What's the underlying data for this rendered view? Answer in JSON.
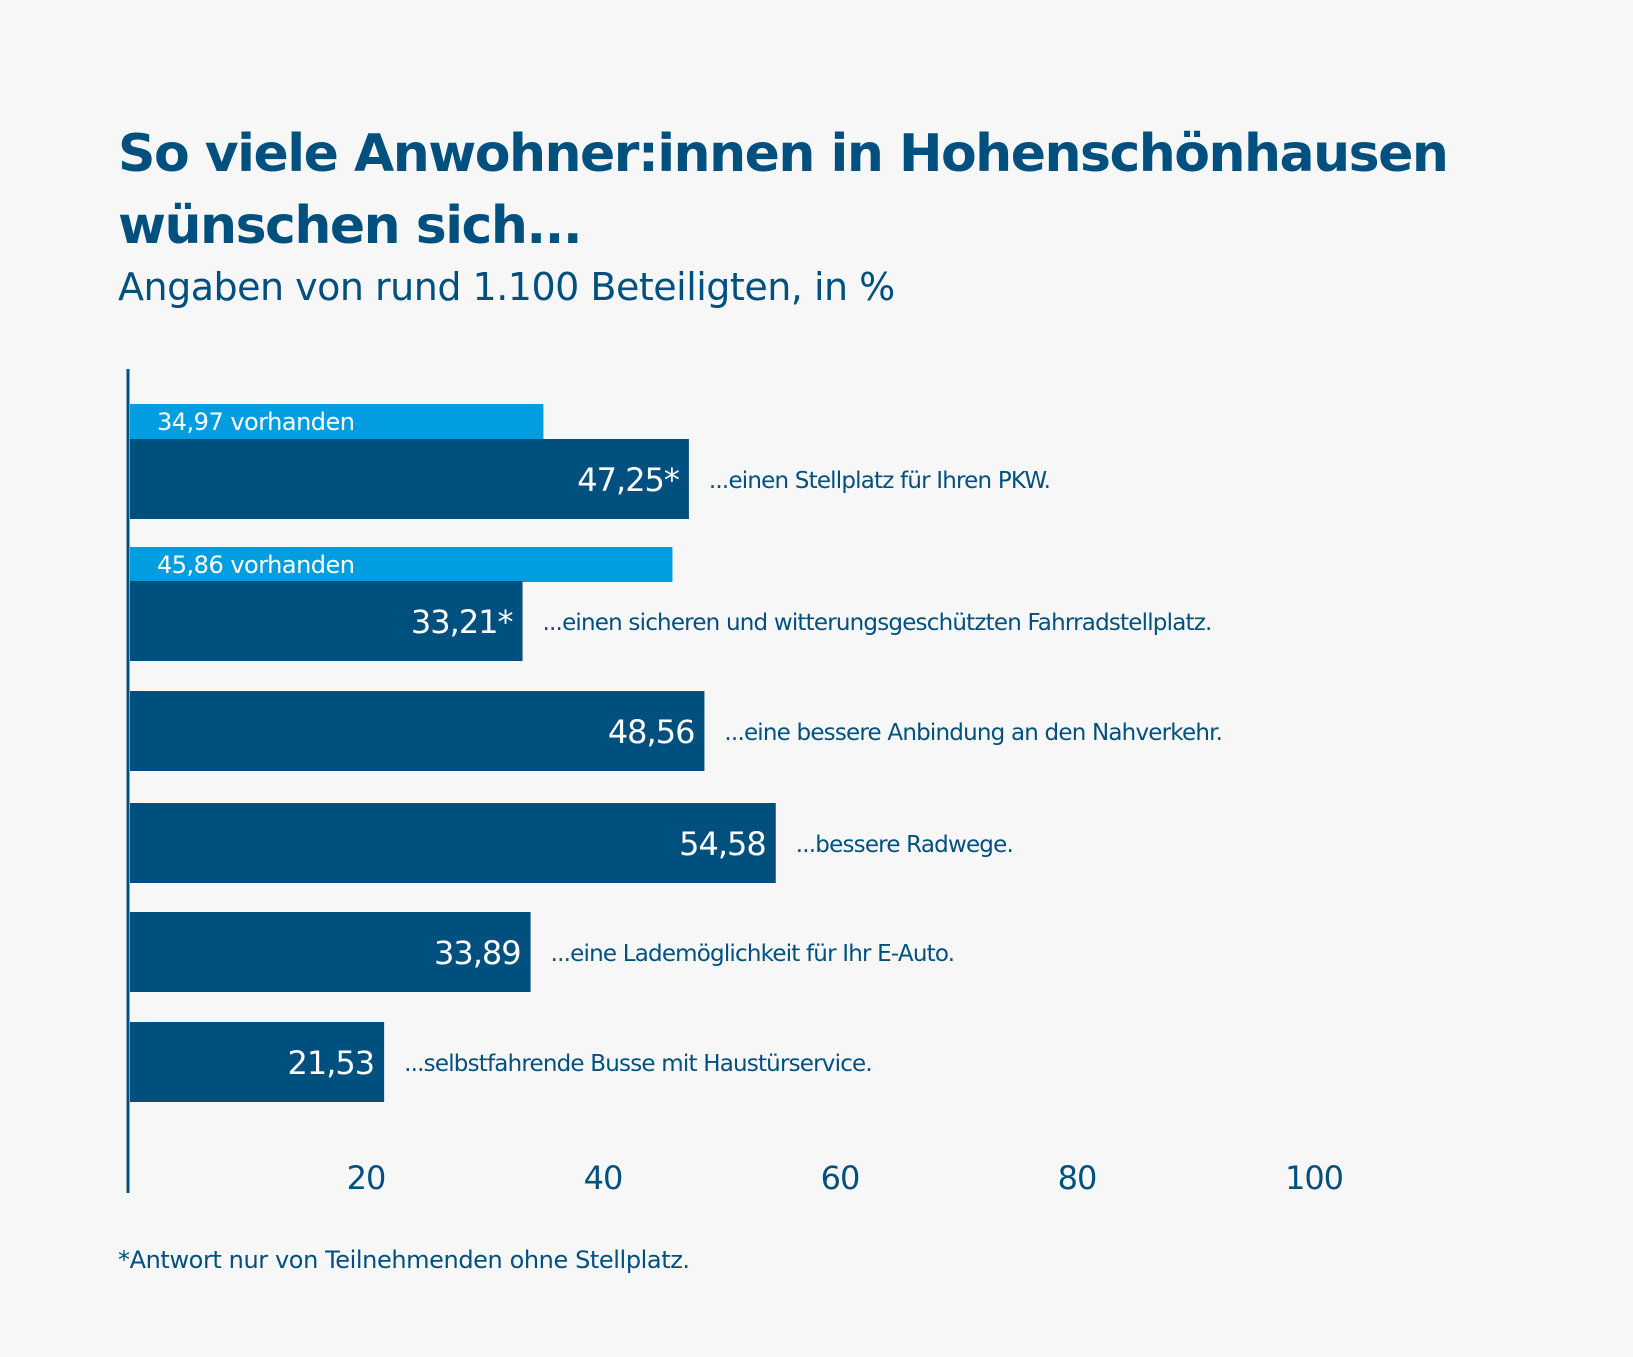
{
  "colors": {
    "background": "#f7f7f7",
    "primary": "#00507f",
    "secondary": "#009ee0",
    "value_text": "#ffffff"
  },
  "chart_data": {
    "type": "bar",
    "orientation": "horizontal",
    "title": "So viele Anwohner:innen in Hohenschönhausen wünschen sich...",
    "subtitle": "Angaben von rund 1.100 Beteiligten, in %",
    "footnote": "*Antwort nur von Teilnehmenden ohne Stellplatz.",
    "xlabel": "",
    "ylabel": "",
    "xlim": [
      0,
      100
    ],
    "xticks": [
      20,
      40,
      60,
      80,
      100
    ],
    "grid": false,
    "legend": "none",
    "categories": [
      "...einen Stellplatz für Ihren PKW.",
      "...einen sicheren und witterungsgeschützten Fahrradstellplatz.",
      "...eine bessere Anbindung an den Nahverkehr.",
      "...bessere Radwege.",
      "...eine Lademöglichkeit für Ihr E-Auto.",
      "...selbstfahrende Busse mit Haustürservice."
    ],
    "series": [
      {
        "name": "wünschen sich",
        "values": [
          47.25,
          33.21,
          48.56,
          54.58,
          33.89,
          21.53
        ],
        "labels": [
          "47,25*",
          "33,21*",
          "48,56",
          "54,58",
          "33,89",
          "21,53"
        ]
      },
      {
        "name": "vorhanden",
        "values": [
          34.97,
          45.86,
          null,
          null,
          null,
          null
        ],
        "labels": [
          "34,97 vorhanden",
          "45,86 vorhanden",
          null,
          null,
          null,
          null
        ]
      }
    ]
  }
}
